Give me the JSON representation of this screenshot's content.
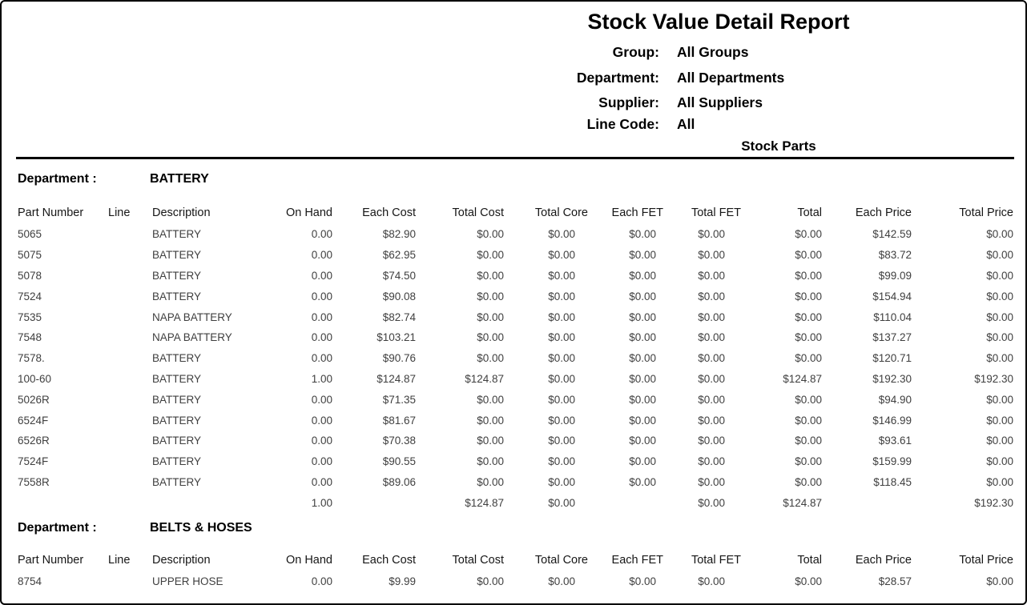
{
  "report": {
    "title": "Stock Value Detail Report",
    "filters": [
      {
        "label": "Group:",
        "value": "All Groups"
      },
      {
        "label": "Department:",
        "value": "All Departments"
      },
      {
        "label": "Supplier:",
        "value": "All Suppliers"
      },
      {
        "label": "Line Code:",
        "value": "All"
      }
    ],
    "subtitle": "Stock Parts"
  },
  "table": {
    "columns": [
      {
        "label": "Part Number",
        "align": "left"
      },
      {
        "label": "Line",
        "align": "left"
      },
      {
        "label": "Description",
        "align": "left"
      },
      {
        "label": "On Hand",
        "align": "right"
      },
      {
        "label": "Each Cost",
        "align": "right"
      },
      {
        "label": "Total Cost",
        "align": "right"
      },
      {
        "label": "Total Core",
        "align": "right"
      },
      {
        "label": "Each FET",
        "align": "right"
      },
      {
        "label": "Total FET",
        "align": "right"
      },
      {
        "label": "Total",
        "align": "right"
      },
      {
        "label": "Each Price",
        "align": "right"
      },
      {
        "label": "Total Price",
        "align": "right"
      }
    ]
  },
  "sections": [
    {
      "department_label": "Department :",
      "department_name": "BATTERY",
      "rows": [
        [
          "5065",
          "",
          "BATTERY",
          "0.00",
          "$82.90",
          "$0.00",
          "$0.00",
          "$0.00",
          "$0.00",
          "$0.00",
          "$142.59",
          "$0.00"
        ],
        [
          "5075",
          "",
          "BATTERY",
          "0.00",
          "$62.95",
          "$0.00",
          "$0.00",
          "$0.00",
          "$0.00",
          "$0.00",
          "$83.72",
          "$0.00"
        ],
        [
          "5078",
          "",
          "BATTERY",
          "0.00",
          "$74.50",
          "$0.00",
          "$0.00",
          "$0.00",
          "$0.00",
          "$0.00",
          "$99.09",
          "$0.00"
        ],
        [
          "7524",
          "",
          "BATTERY",
          "0.00",
          "$90.08",
          "$0.00",
          "$0.00",
          "$0.00",
          "$0.00",
          "$0.00",
          "$154.94",
          "$0.00"
        ],
        [
          "7535",
          "",
          "NAPA BATTERY",
          "0.00",
          "$82.74",
          "$0.00",
          "$0.00",
          "$0.00",
          "$0.00",
          "$0.00",
          "$110.04",
          "$0.00"
        ],
        [
          "7548",
          "",
          "NAPA BATTERY",
          "0.00",
          "$103.21",
          "$0.00",
          "$0.00",
          "$0.00",
          "$0.00",
          "$0.00",
          "$137.27",
          "$0.00"
        ],
        [
          "7578.",
          "",
          "BATTERY",
          "0.00",
          "$90.76",
          "$0.00",
          "$0.00",
          "$0.00",
          "$0.00",
          "$0.00",
          "$120.71",
          "$0.00"
        ],
        [
          "100-60",
          "",
          "BATTERY",
          "1.00",
          "$124.87",
          "$124.87",
          "$0.00",
          "$0.00",
          "$0.00",
          "$124.87",
          "$192.30",
          "$192.30"
        ],
        [
          "5026R",
          "",
          "BATTERY",
          "0.00",
          "$71.35",
          "$0.00",
          "$0.00",
          "$0.00",
          "$0.00",
          "$0.00",
          "$94.90",
          "$0.00"
        ],
        [
          "6524F",
          "",
          "BATTERY",
          "0.00",
          "$81.67",
          "$0.00",
          "$0.00",
          "$0.00",
          "$0.00",
          "$0.00",
          "$146.99",
          "$0.00"
        ],
        [
          "6526R",
          "",
          "BATTERY",
          "0.00",
          "$70.38",
          "$0.00",
          "$0.00",
          "$0.00",
          "$0.00",
          "$0.00",
          "$93.61",
          "$0.00"
        ],
        [
          "7524F",
          "",
          "BATTERY",
          "0.00",
          "$90.55",
          "$0.00",
          "$0.00",
          "$0.00",
          "$0.00",
          "$0.00",
          "$159.99",
          "$0.00"
        ],
        [
          "7558R",
          "",
          "BATTERY",
          "0.00",
          "$89.06",
          "$0.00",
          "$0.00",
          "$0.00",
          "$0.00",
          "$0.00",
          "$118.45",
          "$0.00"
        ]
      ],
      "totals": [
        "",
        "",
        "",
        "1.00",
        "",
        "$124.87",
        "$0.00",
        "",
        "$0.00",
        "$124.87",
        "",
        "$192.30"
      ]
    },
    {
      "department_label": "Department :",
      "department_name": "BELTS & HOSES",
      "rows": [
        [
          "8754",
          "",
          "UPPER HOSE",
          "0.00",
          "$9.99",
          "$0.00",
          "$0.00",
          "$0.00",
          "$0.00",
          "$0.00",
          "$28.57",
          "$0.00"
        ]
      ],
      "totals": null
    }
  ]
}
